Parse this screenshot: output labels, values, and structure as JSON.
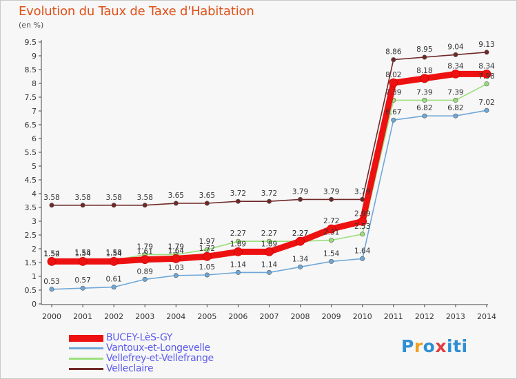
{
  "title": "Evolution du Taux de Taxe d'Habitation",
  "subtitle": "(en %)",
  "brand": {
    "letters": [
      "P",
      "r",
      "o",
      "x",
      "i",
      "t",
      "i"
    ],
    "colors": [
      "#2e8fd4",
      "#f0a020",
      "#2e8fd4",
      "#e04040",
      "#2e8fd4",
      "#2e8fd4",
      "#2e8fd4"
    ]
  },
  "chart_data": {
    "type": "line",
    "x": [
      "2000",
      "2001",
      "2002",
      "2003",
      "2004",
      "2005",
      "2006",
      "2007",
      "2008",
      "2009",
      "2010",
      "2011",
      "2012",
      "2013",
      "2014"
    ],
    "ylim": [
      0,
      9.5
    ],
    "yticks": [
      "0",
      "0.5",
      "1",
      "1.5",
      "2",
      "2.5",
      "3",
      "3.5",
      "4",
      "4.5",
      "5",
      "5.5",
      "6",
      "6.5",
      "7",
      "7.5",
      "8",
      "8.5",
      "9",
      "9.5"
    ],
    "grid": false,
    "legend_position": "bottom-left",
    "series": [
      {
        "name": "Velleclaire",
        "color": "#702828",
        "values": [
          3.58,
          3.58,
          3.58,
          3.58,
          3.65,
          3.65,
          3.72,
          3.72,
          3.79,
          3.79,
          3.79,
          8.86,
          8.95,
          9.04,
          9.13
        ],
        "labels": [
          "3.58",
          "3.58",
          "3.58",
          "3.58",
          "3.65",
          "3.65",
          "3.72",
          "3.72",
          "3.79",
          "3.79",
          "3.79",
          "8.86",
          "8.95",
          "9.04",
          "9.13"
        ]
      },
      {
        "name": "Vellefrey-et-Vellefrange",
        "color": "#99e07a",
        "values": [
          1.52,
          1.58,
          1.58,
          1.79,
          1.79,
          1.97,
          2.27,
          2.27,
          2.27,
          2.31,
          2.53,
          7.39,
          7.39,
          7.39,
          7.98
        ],
        "labels": [
          "1.52",
          "1.58",
          "1.58",
          "1.79",
          "1.79",
          "1.97",
          "2.27",
          "2.27",
          "2.27",
          "2.31",
          "2.53",
          "7.39",
          "7.39",
          "7.39",
          "7.98"
        ]
      },
      {
        "name": "Vantoux-et-Longevelle",
        "color": "#6fa8d8",
        "values": [
          0.53,
          0.57,
          0.61,
          0.89,
          1.03,
          1.05,
          1.14,
          1.14,
          1.34,
          1.54,
          1.64,
          6.67,
          6.82,
          6.82,
          7.02
        ],
        "labels": [
          "0.53",
          "0.57",
          "0.61",
          "0.89",
          "1.03",
          "1.05",
          "1.14",
          "1.14",
          "1.34",
          "1.54",
          "1.64",
          "6.67",
          "6.82",
          "6.82",
          "7.02"
        ]
      },
      {
        "name": "BUCEY-LèS-GY",
        "color": "#ee1111",
        "values": [
          1.54,
          1.54,
          1.54,
          1.61,
          1.64,
          1.72,
          1.89,
          1.89,
          2.27,
          2.72,
          2.99,
          8.02,
          8.18,
          8.34,
          8.34
        ],
        "labels": [
          "1.54",
          "1.54",
          "1.54",
          "1.61",
          "1.64",
          "1.72",
          "1.89",
          "1.89",
          "2.27",
          "2.72",
          "2.99",
          "8.02",
          "8.18",
          "8.34",
          "8.34"
        ]
      }
    ],
    "legend": [
      "BUCEY-LèS-GY",
      "Vantoux-et-Longevelle",
      "Vellefrey-et-Vellefrange",
      "Velleclaire"
    ]
  }
}
